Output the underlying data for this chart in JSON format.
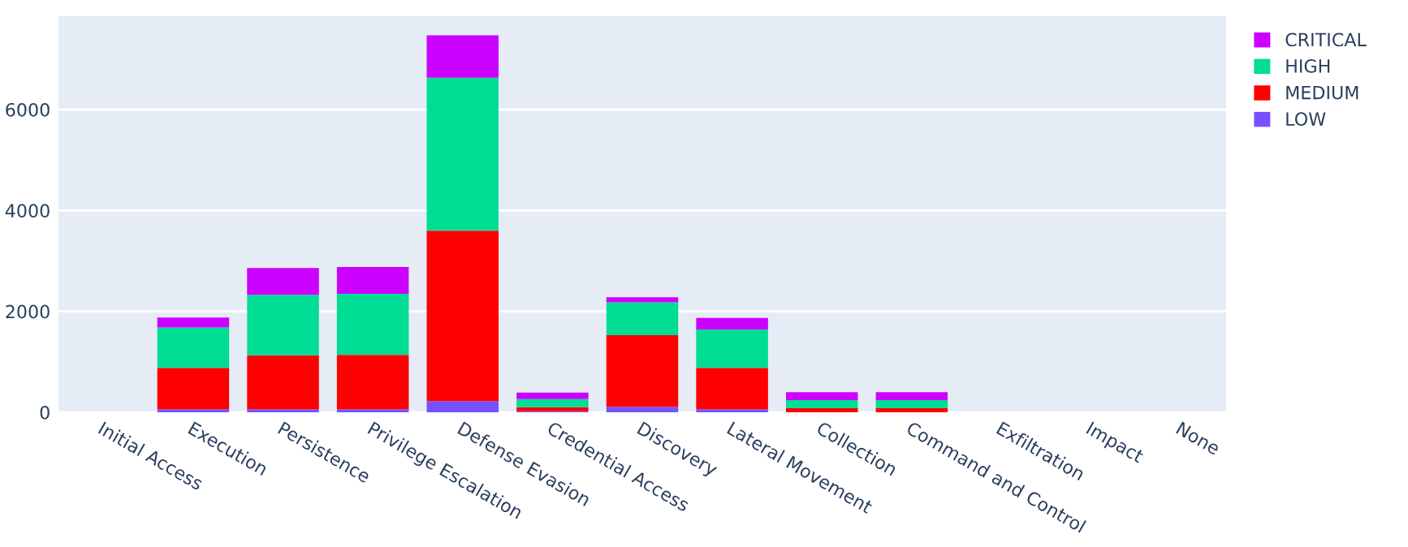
{
  "chart_data": {
    "type": "bar",
    "stacked": true,
    "categories": [
      "Initial Access",
      "Execution",
      "Persistence",
      "Privilege Escalation",
      "Defense Evasion",
      "Credential Access",
      "Discovery",
      "Lateral Movement",
      "Collection",
      "Command and Control",
      "Exfiltration",
      "Impact",
      "None"
    ],
    "series": [
      {
        "name": "LOW",
        "color": "#7652fe",
        "values": [
          0,
          60,
          60,
          60,
          220,
          20,
          110,
          60,
          null,
          null,
          0,
          0,
          0
        ]
      },
      {
        "name": "MEDIUM",
        "color": "#ff0000",
        "values": [
          0,
          820,
          1070,
          1080,
          3380,
          80,
          1420,
          820,
          80,
          80,
          0,
          0,
          0
        ]
      },
      {
        "name": "HIGH",
        "color": "#00dd95",
        "values": [
          0,
          800,
          1200,
          1210,
          3030,
          160,
          650,
          760,
          160,
          160,
          0,
          0,
          0
        ]
      },
      {
        "name": "CRITICAL",
        "color": "#cc00ff",
        "values": [
          0,
          200,
          530,
          530,
          840,
          130,
          100,
          230,
          160,
          160,
          0,
          0,
          0
        ]
      }
    ],
    "ylim": [
      0,
      7850
    ],
    "yticks": [
      0,
      2000,
      4000,
      6000
    ],
    "grid": "y",
    "legend": "top right"
  }
}
